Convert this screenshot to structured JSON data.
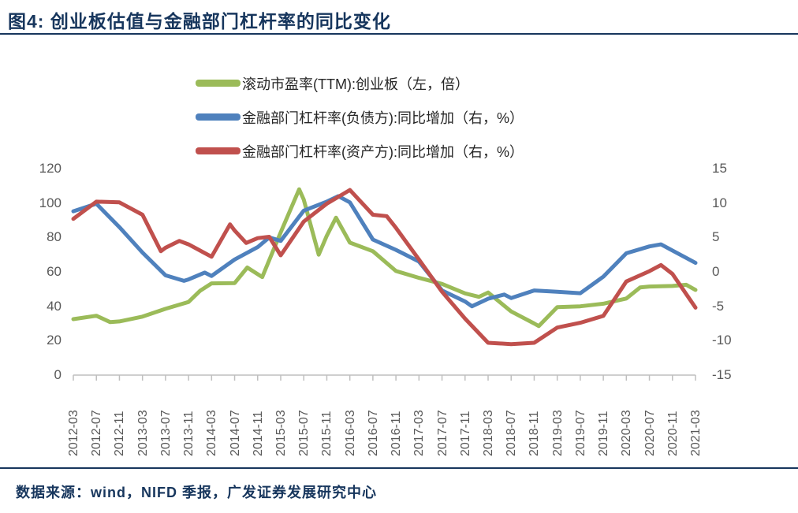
{
  "title": "图4:  创业板估值与金融部门杠杆率的同比变化",
  "source_note": "数据来源：wind，NIFD 季报，广发证券发展研究中心",
  "colors": {
    "accent_navy": "#17365d",
    "axis_text": "#595959",
    "axis_line": "#bfbfbf",
    "series_green": "#9bbb59",
    "series_blue": "#4f81bd",
    "series_red": "#c0504d"
  },
  "legend": [
    {
      "label": "滚动市盈率(TTM):创业板（左，倍）",
      "color": "#9bbb59"
    },
    {
      "label": "金融部门杠杆率(负债方):同比增加（右，%）",
      "color": "#4f81bd"
    },
    {
      "label": "金融部门杠杆率(资产方):同比增加（右，%）",
      "color": "#c0504d"
    }
  ],
  "chart_data": {
    "type": "line",
    "x_labels": [
      "2012-03",
      "2012-07",
      "2012-11",
      "2013-03",
      "2013-07",
      "2013-11",
      "2014-03",
      "2014-07",
      "2014-11",
      "2015-03",
      "2015-07",
      "2015-11",
      "2016-03",
      "2016-07",
      "2016-11",
      "2017-03",
      "2017-07",
      "2017-11",
      "2018-03",
      "2018-07",
      "2018-11",
      "2019-03",
      "2019-07",
      "2019-11",
      "2020-03",
      "2020-07",
      "2020-11",
      "2021-03"
    ],
    "left_axis": {
      "ticks": [
        120,
        100,
        80,
        60,
        40,
        20,
        0
      ],
      "range": [
        0,
        120
      ],
      "label": "倍"
    },
    "right_axis": {
      "ticks": [
        15,
        10,
        5,
        0,
        -5,
        -10,
        -15
      ],
      "range": [
        -15,
        15
      ],
      "label": "%"
    },
    "grid": false,
    "legend_position": "top",
    "series": [
      {
        "name": "滚动市盈率(TTM):创业板（左，倍）",
        "axis": "left",
        "color": "#9bbb59",
        "points": [
          [
            0,
            32.5
          ],
          [
            1,
            34.5
          ],
          [
            1.6,
            30.8
          ],
          [
            2,
            31.2
          ],
          [
            3,
            34
          ],
          [
            4,
            38.5
          ],
          [
            5,
            42.5
          ],
          [
            5.5,
            49
          ],
          [
            6,
            53.3
          ],
          [
            7,
            53.5
          ],
          [
            7.55,
            62.5
          ],
          [
            8.2,
            57
          ],
          [
            9,
            83
          ],
          [
            9.8,
            108
          ],
          [
            10,
            102
          ],
          [
            10.65,
            70
          ],
          [
            11,
            81
          ],
          [
            11.4,
            91.5
          ],
          [
            12,
            77
          ],
          [
            13,
            72
          ],
          [
            14,
            60.5
          ],
          [
            15,
            56.5
          ],
          [
            16,
            53
          ],
          [
            17,
            47.5
          ],
          [
            17.6,
            45.5
          ],
          [
            18,
            48
          ],
          [
            19,
            37
          ],
          [
            20,
            30
          ],
          [
            20.2,
            28.5
          ],
          [
            21,
            39.5
          ],
          [
            22,
            40
          ],
          [
            23,
            41.5
          ],
          [
            24,
            44.5
          ],
          [
            24.6,
            51
          ],
          [
            25,
            51.5
          ],
          [
            26,
            51.8
          ],
          [
            26.6,
            52.5
          ],
          [
            27,
            49.5
          ]
        ]
      },
      {
        "name": "金融部门杠杆率(负债方):同比增加（右，%）",
        "axis": "right",
        "color": "#4f81bd",
        "points": [
          [
            0,
            8.8
          ],
          [
            1,
            9.9
          ],
          [
            2,
            6.5
          ],
          [
            3,
            2.8
          ],
          [
            4,
            -0.5
          ],
          [
            4.8,
            -1.3
          ],
          [
            5,
            -1.1
          ],
          [
            5.7,
            -0.1
          ],
          [
            6,
            -0.6
          ],
          [
            7,
            1.8
          ],
          [
            8,
            3.6
          ],
          [
            8.5,
            5
          ],
          [
            9,
            4.5
          ],
          [
            10,
            8.9
          ],
          [
            11,
            10.2
          ],
          [
            11.5,
            11
          ],
          [
            12,
            10.1
          ],
          [
            13,
            4.7
          ],
          [
            14,
            3.2
          ],
          [
            15,
            1.5
          ],
          [
            16,
            -2.7
          ],
          [
            17,
            -4.3
          ],
          [
            17.3,
            -5
          ],
          [
            18,
            -3.9
          ],
          [
            18.7,
            -3.3
          ],
          [
            19,
            -3.8
          ],
          [
            20,
            -2.7
          ],
          [
            21,
            -2.9
          ],
          [
            22,
            -3.1
          ],
          [
            23,
            -0.7
          ],
          [
            24,
            2.7
          ],
          [
            25,
            3.7
          ],
          [
            25.5,
            4
          ],
          [
            26,
            3.1
          ],
          [
            27,
            1.3
          ]
        ]
      },
      {
        "name": "金融部门杠杆率(资产方):同比增加（右，%）",
        "axis": "right",
        "color": "#c0504d",
        "points": [
          [
            0,
            7.7
          ],
          [
            1,
            10.2
          ],
          [
            2,
            10.1
          ],
          [
            3,
            8.3
          ],
          [
            3.8,
            3
          ],
          [
            4,
            3.5
          ],
          [
            4.6,
            4.5
          ],
          [
            5,
            4
          ],
          [
            6,
            2.2
          ],
          [
            6.8,
            6.9
          ],
          [
            7,
            6
          ],
          [
            7.5,
            4.2
          ],
          [
            8,
            4.9
          ],
          [
            8.5,
            5.1
          ],
          [
            9,
            2.4
          ],
          [
            10,
            7.3
          ],
          [
            11,
            9.9
          ],
          [
            12,
            11.9
          ],
          [
            13,
            8.3
          ],
          [
            13.6,
            8.1
          ],
          [
            14,
            6.4
          ],
          [
            15,
            1.8
          ],
          [
            16,
            -2.9
          ],
          [
            17,
            -6.8
          ],
          [
            18,
            -10.3
          ],
          [
            19,
            -10.5
          ],
          [
            20,
            -10.3
          ],
          [
            21,
            -8.1
          ],
          [
            22,
            -7.4
          ],
          [
            23,
            -6.4
          ],
          [
            24,
            -1.4
          ],
          [
            25,
            0.1
          ],
          [
            25.5,
            1
          ],
          [
            26,
            -0.3
          ],
          [
            27,
            -5.2
          ]
        ]
      }
    ]
  }
}
